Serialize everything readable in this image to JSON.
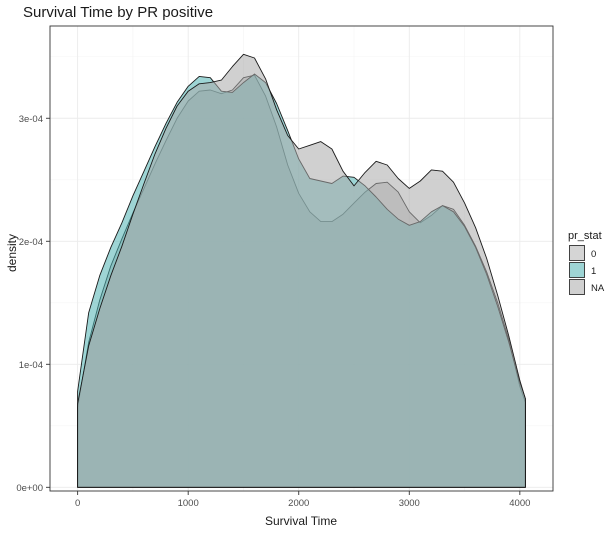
{
  "chart_data": {
    "type": "area",
    "subtype": "density",
    "title": "Survival Time by PR positive",
    "xlabel": "Survival Time",
    "ylabel": "density",
    "xlim": [
      -250,
      4300
    ],
    "ylim": [
      -3e-06,
      0.000375
    ],
    "x_ticks": [
      0,
      1000,
      2000,
      3000,
      4000
    ],
    "x_tick_labels": [
      "0",
      "1000",
      "2000",
      "3000",
      "4000"
    ],
    "y_ticks": [
      0,
      0.0001,
      0.0002,
      0.0003
    ],
    "y_tick_labels": [
      "0e+00",
      "1e-04",
      "2e-04",
      "3e-04"
    ],
    "grid": true,
    "legend": {
      "title": "pr_stat",
      "position": "right"
    },
    "colors": {
      "0": "#b3b3b3",
      "1": "#4fb3b3",
      "NA": "#a9a9a9",
      "outline": "#1a1a1a"
    },
    "series": [
      {
        "name": "0",
        "x": [
          0,
          100,
          200,
          300,
          400,
          500,
          600,
          700,
          800,
          900,
          1000,
          1100,
          1200,
          1300,
          1400,
          1500,
          1600,
          1700,
          1800,
          1900,
          2000,
          2100,
          2200,
          2300,
          2400,
          2500,
          2600,
          2700,
          2800,
          2900,
          3000,
          3100,
          3200,
          3300,
          3400,
          3500,
          3600,
          3700,
          3800,
          3900,
          4000,
          4050
        ],
        "y": [
          6.5e-05,
          0.000118,
          0.000152,
          0.00018,
          0.000202,
          0.000223,
          0.000243,
          0.000263,
          0.000282,
          0.0003,
          0.000314,
          0.000322,
          0.000323,
          0.00032,
          0.000323,
          0.000333,
          0.000335,
          0.000318,
          0.000293,
          0.000262,
          0.000239,
          0.000224,
          0.000216,
          0.000216,
          0.000222,
          0.000231,
          0.00024,
          0.000247,
          0.000248,
          0.00024,
          0.000224,
          0.000215,
          0.000221,
          0.000229,
          0.000226,
          0.000213,
          0.000196,
          0.000175,
          0.00015,
          0.00012,
          8.2e-05,
          6.9e-05
        ]
      },
      {
        "name": "1",
        "x": [
          0,
          100,
          200,
          300,
          400,
          500,
          600,
          700,
          800,
          900,
          1000,
          1100,
          1200,
          1300,
          1400,
          1500,
          1600,
          1700,
          1800,
          1900,
          2000,
          2100,
          2200,
          2300,
          2400,
          2500,
          2600,
          2700,
          2800,
          2900,
          3000,
          3100,
          3200,
          3300,
          3400,
          3500,
          3600,
          3700,
          3800,
          3900,
          4000,
          4050
        ],
        "y": [
          7.8e-05,
          0.000142,
          0.000172,
          0.000195,
          0.000215,
          0.000237,
          0.000257,
          0.000277,
          0.000296,
          0.000313,
          0.000326,
          0.000334,
          0.000333,
          0.000322,
          0.000321,
          0.000329,
          0.000336,
          0.000329,
          0.000312,
          0.00029,
          0.000267,
          0.000251,
          0.000249,
          0.000247,
          0.000253,
          0.000252,
          0.000245,
          0.000236,
          0.000226,
          0.000218,
          0.000213,
          0.000216,
          0.000224,
          0.000229,
          0.000224,
          0.000212,
          0.000195,
          0.000173,
          0.000147,
          0.000118,
          8.5e-05,
          7.2e-05
        ]
      },
      {
        "name": "NA",
        "x": [
          0,
          100,
          200,
          300,
          400,
          500,
          600,
          700,
          800,
          900,
          1000,
          1100,
          1200,
          1300,
          1400,
          1500,
          1600,
          1700,
          1800,
          1900,
          2000,
          2100,
          2200,
          2300,
          2400,
          2500,
          2600,
          2700,
          2800,
          2900,
          3000,
          3100,
          3200,
          3300,
          3400,
          3500,
          3600,
          3700,
          3800,
          3900,
          4000,
          4050
        ],
        "y": [
          6.8e-05,
          0.000115,
          0.000145,
          0.000172,
          0.000196,
          0.000222,
          0.000247,
          0.000271,
          0.000292,
          0.00031,
          0.000322,
          0.000328,
          0.000329,
          0.000331,
          0.000342,
          0.000352,
          0.000349,
          0.000332,
          0.000307,
          0.000286,
          0.000275,
          0.000278,
          0.000281,
          0.000275,
          0.000257,
          0.000245,
          0.000256,
          0.000265,
          0.000262,
          0.000251,
          0.000243,
          0.000249,
          0.000258,
          0.000257,
          0.000248,
          0.000231,
          0.000211,
          0.000186,
          0.000156,
          0.000123,
          8.7e-05,
          7.2e-05
        ]
      }
    ]
  }
}
